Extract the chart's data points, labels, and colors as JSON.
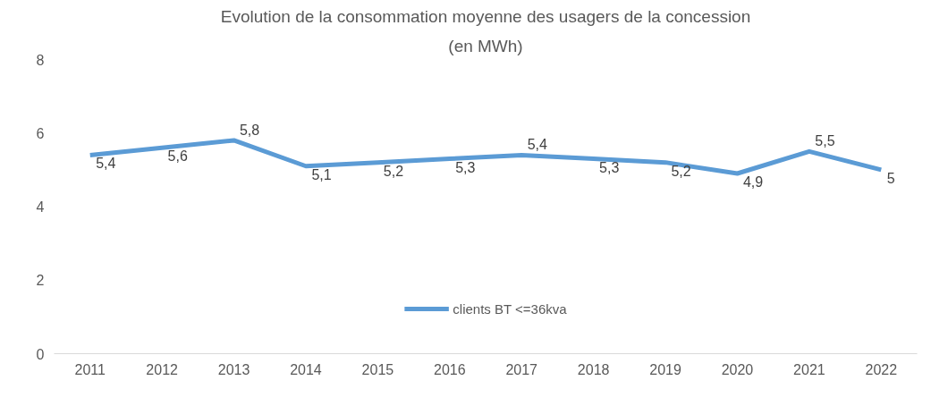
{
  "chart_data": {
    "type": "line",
    "title": "Evolution de la consommation moyenne des usagers de la concession",
    "subtitle": "(en MWh)",
    "categories": [
      "2011",
      "2012",
      "2013",
      "2014",
      "2015",
      "2016",
      "2017",
      "2018",
      "2019",
      "2020",
      "2021",
      "2022"
    ],
    "series": [
      {
        "name": "clients BT <=36kva",
        "color": "#5b9bd5",
        "values": [
          5.4,
          5.6,
          5.8,
          5.1,
          5.2,
          5.3,
          5.4,
          5.3,
          5.2,
          4.9,
          5.5,
          5
        ],
        "value_labels": [
          "5,4",
          "5,6",
          "5,8",
          "5,1",
          "5,2",
          "5,3",
          "5,4",
          "5,3",
          "5,2",
          "4,9",
          "5,5",
          "5"
        ]
      }
    ],
    "ylim": [
      0,
      8
    ],
    "yticks": [
      0,
      2,
      4,
      6,
      8
    ],
    "grid": false,
    "legend": "bottom",
    "marker": "none",
    "line_style": "solid"
  }
}
